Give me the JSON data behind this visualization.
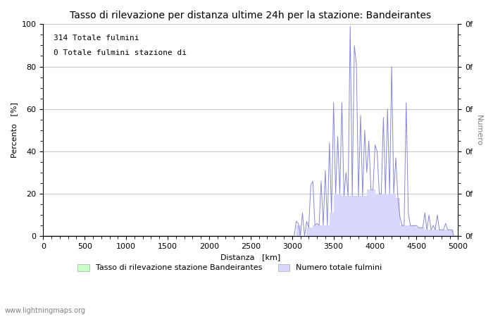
{
  "title": "Tasso di rilevazione per distanza ultime 24h per la stazione: Bandeirantes",
  "xlabel": "Distanza   [km]",
  "ylabel_left": "Percento   [%]",
  "ylabel_right": "Numero",
  "annotation_line1": "314 Totale fulmini",
  "annotation_line2": "0 Totale fulmini stazione di",
  "watermark": "www.lightningmaps.org",
  "legend_label1": "Tasso di rilevazione stazione Bandeirantes",
  "legend_label2": "Numero totale fulmini",
  "xlim": [
    0,
    5000
  ],
  "ylim_left": [
    0,
    100
  ],
  "xticks": [
    0,
    500,
    1000,
    1500,
    2000,
    2500,
    3000,
    3500,
    4000,
    4500,
    5000
  ],
  "yticks_left": [
    0,
    20,
    40,
    60,
    80,
    100
  ],
  "background_color": "#ffffff",
  "grid_color": "#c8c8c8",
  "fill_color_numero": "#d8d8ff",
  "fill_color_tasso": "#c8ffc8",
  "line_color": "#8888cc",
  "title_fontsize": 10,
  "label_fontsize": 8,
  "tick_fontsize": 8,
  "x": [
    0,
    25,
    50,
    75,
    100,
    125,
    150,
    175,
    200,
    225,
    250,
    275,
    300,
    325,
    350,
    375,
    400,
    425,
    450,
    475,
    500,
    525,
    550,
    575,
    600,
    625,
    650,
    675,
    700,
    725,
    750,
    775,
    800,
    825,
    850,
    875,
    900,
    925,
    950,
    975,
    1000,
    1025,
    1050,
    1075,
    1100,
    1125,
    1150,
    1175,
    1200,
    1225,
    1250,
    1275,
    1300,
    1325,
    1350,
    1375,
    1400,
    1425,
    1450,
    1475,
    1500,
    1525,
    1550,
    1575,
    1600,
    1625,
    1650,
    1675,
    1700,
    1725,
    1750,
    1775,
    1800,
    1825,
    1850,
    1875,
    1900,
    1925,
    1950,
    1975,
    2000,
    2025,
    2050,
    2075,
    2100,
    2125,
    2150,
    2175,
    2200,
    2225,
    2250,
    2275,
    2300,
    2325,
    2350,
    2375,
    2400,
    2425,
    2450,
    2475,
    2500,
    2525,
    2550,
    2575,
    2600,
    2625,
    2650,
    2675,
    2700,
    2725,
    2750,
    2775,
    2800,
    2825,
    2850,
    2875,
    2900,
    2925,
    2950,
    2975,
    3000,
    3025,
    3050,
    3075,
    3100,
    3125,
    3150,
    3175,
    3200,
    3225,
    3250,
    3275,
    3300,
    3325,
    3350,
    3375,
    3400,
    3425,
    3450,
    3475,
    3500,
    3525,
    3550,
    3575,
    3600,
    3625,
    3650,
    3675,
    3700,
    3725,
    3750,
    3775,
    3800,
    3825,
    3850,
    3875,
    3900,
    3925,
    3950,
    3975,
    4000,
    4025,
    4050,
    4075,
    4100,
    4125,
    4150,
    4175,
    4200,
    4225,
    4250,
    4275,
    4300,
    4325,
    4350,
    4375,
    4400,
    4425,
    4450,
    4475,
    4500,
    4525,
    4550,
    4575,
    4600,
    4625,
    4650,
    4675,
    4700,
    4725,
    4750,
    4775,
    4800,
    4825,
    4850,
    4875,
    4900,
    4925,
    4950,
    4975,
    5000
  ],
  "numero_base": [
    0,
    0,
    0,
    0,
    0,
    0,
    0,
    0,
    0,
    0,
    0,
    0,
    0,
    0,
    0,
    0,
    0,
    0,
    0,
    0,
    0,
    0,
    0,
    0,
    0,
    0,
    0,
    0,
    0,
    0,
    0,
    0,
    0,
    0,
    0,
    0,
    0,
    0,
    0,
    0,
    0,
    0,
    0,
    0,
    0,
    0,
    0,
    0,
    0,
    0,
    0,
    0,
    0,
    0,
    0,
    0,
    0,
    0,
    0,
    0,
    0,
    0,
    0,
    0,
    0,
    0,
    0,
    0,
    0,
    0,
    0,
    0,
    0,
    0,
    0,
    0,
    0,
    0,
    0,
    0,
    0,
    0,
    0,
    0,
    0,
    0,
    0,
    0,
    0,
    0,
    0,
    0,
    0,
    0,
    0,
    0,
    0,
    0,
    0,
    0,
    0,
    0,
    0,
    0,
    0,
    0,
    0,
    0,
    0,
    0,
    0,
    0,
    0,
    0,
    0,
    0,
    0,
    0,
    0,
    0,
    0,
    0,
    5,
    5,
    0,
    0,
    0,
    4,
    4,
    4,
    5,
    5,
    5,
    5,
    5,
    5,
    5,
    5,
    11,
    11,
    20,
    20,
    20,
    20,
    19,
    19,
    19,
    19,
    19,
    19,
    19,
    19,
    19,
    19,
    19,
    19,
    22,
    22,
    22,
    22,
    20,
    20,
    20,
    20,
    20,
    20,
    20,
    20,
    20,
    20,
    18,
    18,
    5,
    5,
    5,
    5,
    5,
    5,
    5,
    5,
    4,
    4,
    4,
    4,
    3,
    3,
    3,
    3,
    3,
    3,
    3,
    3,
    3,
    3,
    3,
    3,
    3,
    3,
    0,
    0,
    0
  ],
  "numero_spikes": [
    0,
    0,
    0,
    0,
    0,
    0,
    0,
    0,
    0,
    0,
    0,
    0,
    0,
    0,
    0,
    0,
    0,
    0,
    0,
    0,
    0,
    0,
    0,
    0,
    0,
    0,
    0,
    0,
    0,
    0,
    0,
    0,
    0,
    0,
    0,
    0,
    0,
    0,
    0,
    0,
    0,
    0,
    0,
    0,
    0,
    0,
    0,
    0,
    0,
    0,
    0,
    0,
    0,
    0,
    0,
    0,
    0,
    0,
    0,
    0,
    0,
    0,
    0,
    0,
    0,
    0,
    0,
    0,
    0,
    0,
    0,
    0,
    0,
    0,
    0,
    0,
    0,
    0,
    0,
    0,
    0,
    0,
    0,
    0,
    0,
    0,
    0,
    0,
    0,
    0,
    0,
    0,
    0,
    0,
    0,
    0,
    0,
    0,
    0,
    0,
    0,
    0,
    0,
    0,
    0,
    0,
    0,
    0,
    0,
    0,
    0,
    0,
    0,
    0,
    0,
    0,
    0,
    0,
    0,
    0,
    0,
    0,
    7,
    6,
    0,
    11,
    0,
    7,
    0,
    24,
    26,
    0,
    6,
    0,
    26,
    0,
    31,
    0,
    44,
    0,
    63,
    0,
    47,
    0,
    63,
    0,
    30,
    0,
    99,
    0,
    90,
    81,
    0,
    57,
    0,
    50,
    30,
    45,
    0,
    0,
    43,
    40,
    0,
    0,
    56,
    0,
    60,
    0,
    80,
    0,
    37,
    0,
    9,
    0,
    0,
    63,
    11,
    0,
    0,
    0,
    5,
    0,
    0,
    0,
    11,
    0,
    10,
    0,
    5,
    0,
    10,
    0,
    0,
    0,
    6,
    0,
    0,
    0,
    0,
    0,
    0
  ],
  "tasso": [
    0,
    0,
    0,
    0,
    0,
    0,
    0,
    0,
    0,
    0,
    0,
    0,
    0,
    0,
    0,
    0,
    0,
    0,
    0,
    0,
    0,
    0,
    0,
    0,
    0,
    0,
    0,
    0,
    0,
    0,
    0,
    0,
    0,
    0,
    0,
    0,
    0,
    0,
    0,
    0,
    0,
    0,
    0,
    0,
    0,
    0,
    0,
    0,
    0,
    0,
    0,
    0,
    0,
    0,
    0,
    0,
    0,
    0,
    0,
    0,
    0,
    0,
    0,
    0,
    0,
    0,
    0,
    0,
    0,
    0,
    0,
    0,
    0,
    0,
    0,
    0,
    0,
    0,
    0,
    0,
    0,
    0,
    0,
    0,
    0,
    0,
    0,
    0,
    0,
    0,
    0,
    0,
    0,
    0,
    0,
    0,
    0,
    0,
    0,
    0,
    0,
    0,
    0,
    0,
    0,
    0,
    0,
    0,
    0,
    0,
    0,
    0,
    0,
    0,
    0,
    0,
    0,
    0,
    0,
    0,
    0,
    0,
    0,
    0,
    0,
    0,
    0,
    0,
    0,
    0,
    0,
    0,
    0,
    0,
    0,
    0,
    0,
    0,
    0,
    0,
    0,
    0,
    0,
    0,
    0,
    0,
    0,
    0,
    0,
    0,
    0,
    0,
    0,
    0,
    0,
    0,
    0,
    0,
    0,
    0,
    0,
    0,
    0,
    0,
    0,
    0,
    0,
    0,
    0,
    0,
    0,
    0,
    0,
    0,
    0,
    0,
    0,
    0,
    0,
    0,
    0,
    0,
    0,
    0,
    0,
    0,
    0,
    0,
    0,
    0,
    0,
    0,
    0,
    0,
    0,
    0,
    0,
    0,
    0,
    0,
    0
  ]
}
